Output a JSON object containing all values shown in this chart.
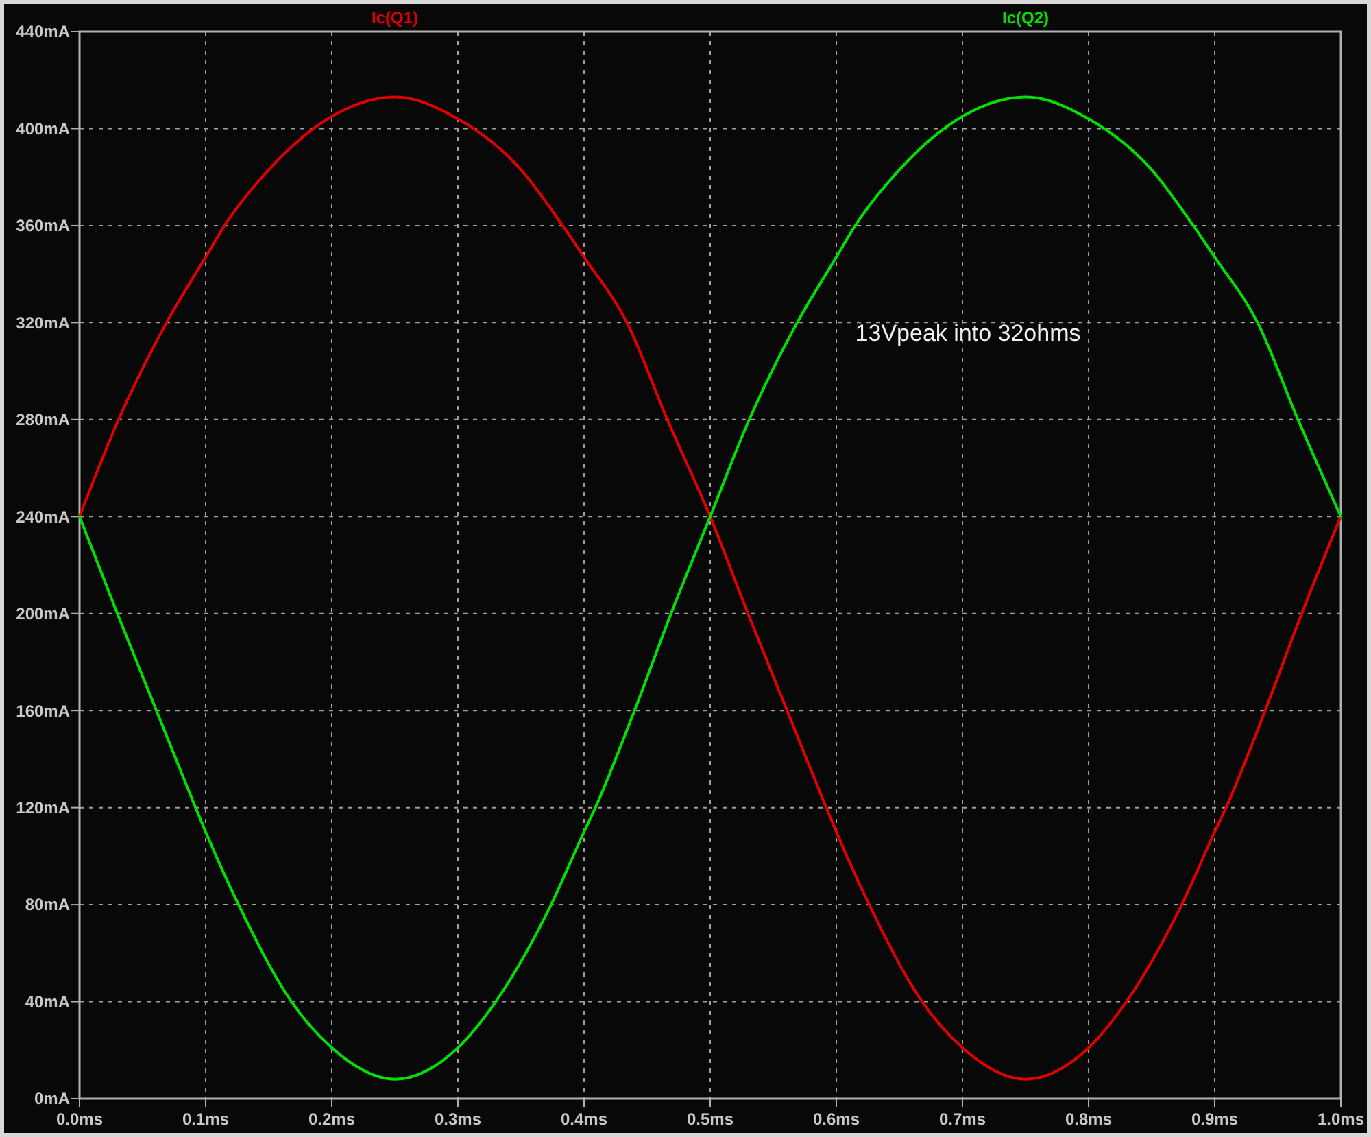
{
  "chart_data": {
    "type": "line",
    "xlim": [
      0,
      1
    ],
    "ylim": [
      0,
      440
    ],
    "xticks": [
      {
        "value": 0,
        "label": "0.0ms"
      },
      {
        "value": 0.1,
        "label": "0.1ms"
      },
      {
        "value": 0.2,
        "label": "0.2ms"
      },
      {
        "value": 0.3,
        "label": "0.3ms"
      },
      {
        "value": 0.4,
        "label": "0.4ms"
      },
      {
        "value": 0.5,
        "label": "0.5ms"
      },
      {
        "value": 0.6,
        "label": "0.6ms"
      },
      {
        "value": 0.7,
        "label": "0.7ms"
      },
      {
        "value": 0.8,
        "label": "0.8ms"
      },
      {
        "value": 0.9,
        "label": "0.9ms"
      },
      {
        "value": 1,
        "label": "1.0ms"
      }
    ],
    "yticks": [
      {
        "value": 0,
        "label": "0mA"
      },
      {
        "value": 40,
        "label": "40mA"
      },
      {
        "value": 80,
        "label": "80mA"
      },
      {
        "value": 120,
        "label": "120mA"
      },
      {
        "value": 160,
        "label": "160mA"
      },
      {
        "value": 200,
        "label": "200mA"
      },
      {
        "value": 240,
        "label": "240mA"
      },
      {
        "value": 280,
        "label": "280mA"
      },
      {
        "value": 320,
        "label": "320mA"
      },
      {
        "value": 360,
        "label": "360mA"
      },
      {
        "value": 400,
        "label": "400mA"
      },
      {
        "value": 440,
        "label": "440mA"
      }
    ],
    "grid": true,
    "legend": "top",
    "marker": "none",
    "line_style": "solid",
    "annotations": [
      "13Vpeak into 32ohms"
    ],
    "series": [
      {
        "name": "Ic(Q1)",
        "color": "#e00000",
        "x": [
          0,
          0.031,
          0.069,
          0.1,
          0.115,
          0.15,
          0.2,
          0.25,
          0.3,
          0.35,
          0.383,
          0.4,
          0.434,
          0.466,
          0.5,
          0.53,
          0.561,
          0.592,
          0.6,
          0.627,
          0.668,
          0.7,
          0.75,
          0.8,
          0.83,
          0.873,
          0.9,
          0.909,
          0.94,
          0.969,
          1
        ],
        "values": [
          240,
          280,
          320,
          347,
          360,
          383,
          405,
          413,
          404,
          383,
          360,
          347,
          320,
          280,
          240,
          200,
          160,
          120,
          110,
          79,
          40,
          21,
          8,
          21,
          40,
          79,
          110,
          120,
          160,
          200,
          240
        ]
      },
      {
        "name": "Ic(Q2)",
        "color": "#00e000",
        "x": [
          0,
          0.03,
          0.061,
          0.092,
          0.1,
          0.127,
          0.168,
          0.2,
          0.25,
          0.3,
          0.33,
          0.373,
          0.4,
          0.409,
          0.44,
          0.469,
          0.5,
          0.531,
          0.569,
          0.6,
          0.615,
          0.65,
          0.7,
          0.75,
          0.8,
          0.85,
          0.883,
          0.9,
          0.934,
          0.966,
          1
        ],
        "values": [
          240,
          200,
          160,
          120,
          110,
          79,
          40,
          21,
          8,
          21,
          40,
          79,
          110,
          120,
          160,
          200,
          240,
          280,
          320,
          347,
          360,
          383,
          405,
          413,
          404,
          383,
          360,
          347,
          320,
          280,
          240
        ]
      }
    ]
  }
}
